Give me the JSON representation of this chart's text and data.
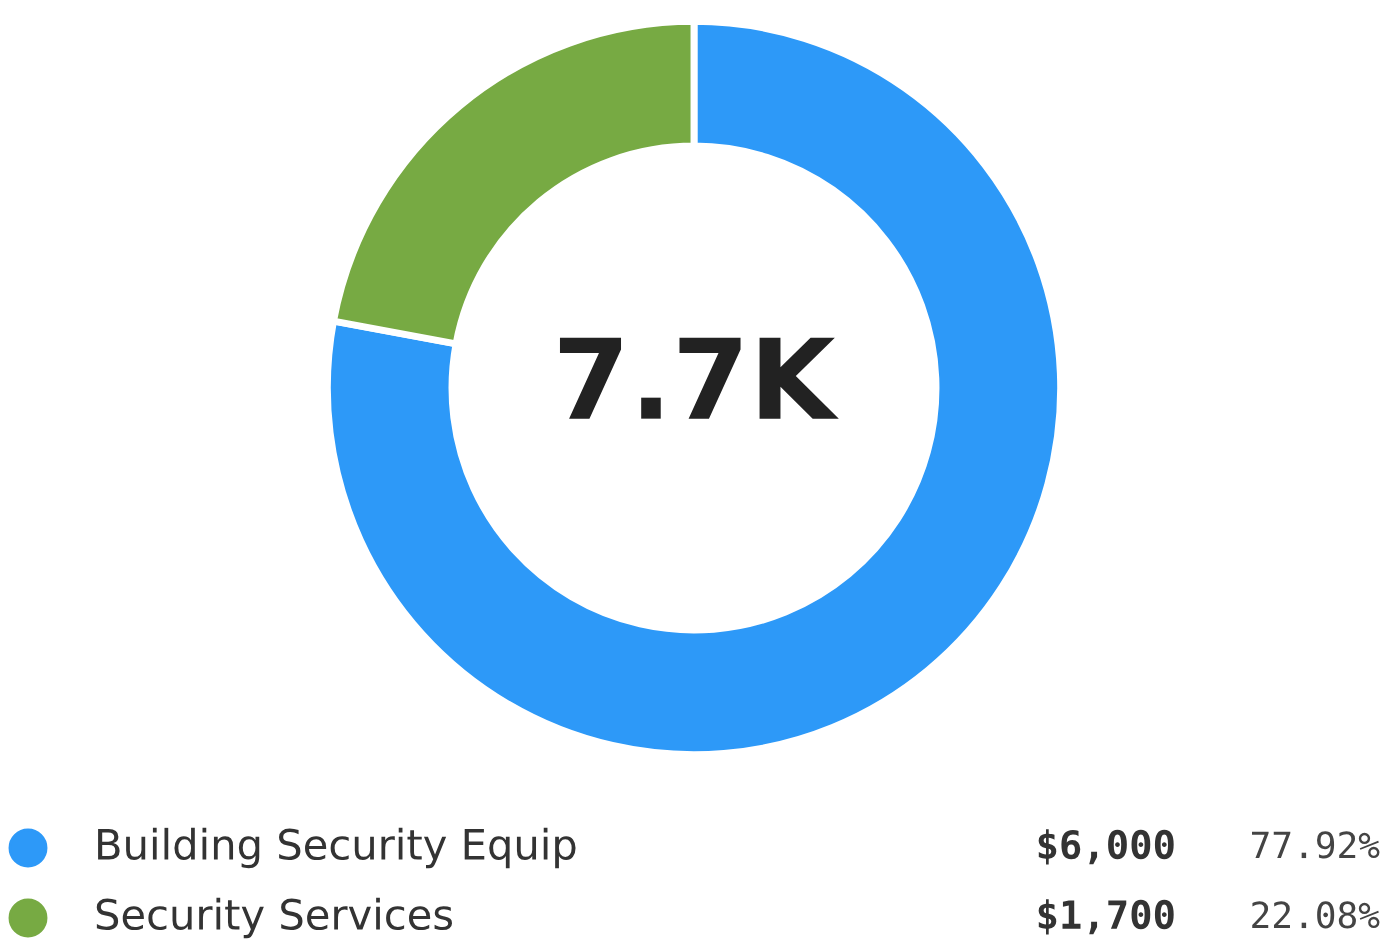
{
  "chart_data": {
    "type": "donut",
    "categories": [
      "Building Security Equip",
      "Security Services"
    ],
    "values": [
      6000,
      1700
    ],
    "colors": [
      "#2d99f8",
      "#77aa43"
    ],
    "value_labels": [
      "$6,000",
      "$1,700"
    ],
    "annotations": [
      "7.7K",
      "77.92%",
      "22.08%"
    ],
    "legend": "bottom"
  }
}
